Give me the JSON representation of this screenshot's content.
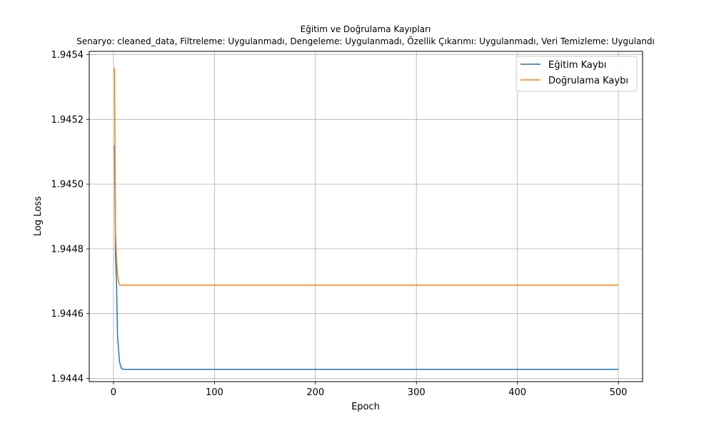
{
  "chart_data": {
    "type": "line",
    "title": "Eğitim ve Doğrulama Kayıpları",
    "subtitle": "Senaryo: cleaned_data, Filtreleme: Uygulanmadı, Dengeleme: Uygulanmadı, Özellik Çıkarımı: Uygulanmadı, Veri Temizleme: Uygulandı",
    "xlabel": "Epoch",
    "ylabel": "Log Loss",
    "xlim": [
      -24,
      524
    ],
    "ylim": [
      1.94439,
      1.94541
    ],
    "x_ticks": [
      0,
      100,
      200,
      300,
      400,
      500
    ],
    "x_tick_labels": [
      "0",
      "100",
      "200",
      "300",
      "400",
      "500"
    ],
    "y_ticks": [
      1.9444,
      1.9446,
      1.9448,
      1.945,
      1.9452,
      1.9454
    ],
    "y_tick_labels": [
      "1.9444",
      "1.9446",
      "1.9448",
      "1.9450",
      "1.9452",
      "1.9454"
    ],
    "grid": true,
    "legend_position": "top-right",
    "series": [
      {
        "name": "Eğitim Kaybı",
        "color": "#1f77b4",
        "x": [
          1,
          2,
          3,
          4,
          5,
          6,
          7,
          8,
          10,
          15,
          20,
          50,
          100,
          200,
          300,
          400,
          500
        ],
        "y": [
          1.94512,
          1.94478,
          1.9447,
          1.94453,
          1.94449,
          1.94445,
          1.94444,
          1.94443,
          1.944428,
          1.944428,
          1.944428,
          1.944428,
          1.944428,
          1.944428,
          1.944428,
          1.944428,
          1.944428
        ]
      },
      {
        "name": "Doğrulama Kaybı",
        "color": "#ff7f0e",
        "x": [
          1,
          2,
          3,
          4,
          5,
          6,
          7,
          8,
          10,
          15,
          20,
          50,
          100,
          200,
          300,
          400,
          500
        ],
        "y": [
          1.94536,
          1.94485,
          1.94477,
          1.94472,
          1.9447,
          1.94469,
          1.944688,
          1.944688,
          1.944688,
          1.944688,
          1.944688,
          1.944688,
          1.944688,
          1.944688,
          1.944688,
          1.944688,
          1.944688
        ]
      }
    ]
  }
}
